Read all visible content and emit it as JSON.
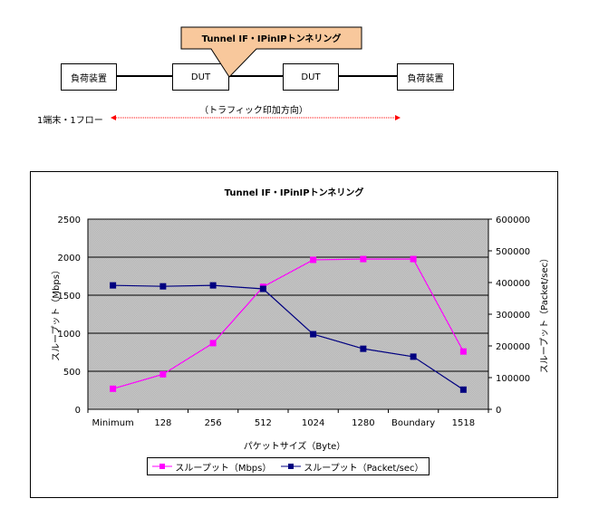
{
  "diagram": {
    "callout_label": "Tunnel IF・IPinIPトンネリング",
    "callout_color": "#f8c89c",
    "nodes": [
      {
        "label": "負荷装置"
      },
      {
        "label": "DUT"
      },
      {
        "label": "DUT"
      },
      {
        "label": "負荷装置"
      }
    ],
    "traffic_direction_label": "（トラフィック印加方向）",
    "flow_label": "1端末・1フロー",
    "arrow_color": "#ff0000"
  },
  "chart_data": {
    "type": "line",
    "title": "Tunnel IF・IPinIPトンネリング",
    "xlabel": "パケットサイズ（Byte）",
    "ylabel": "スループット（Mbps）",
    "y2label": "スループット（Packet/sec）",
    "categories": [
      "Minimum",
      "128",
      "256",
      "512",
      "1024",
      "1280",
      "Boundary",
      "1518"
    ],
    "ylim": [
      0,
      2500
    ],
    "y2lim": [
      0,
      600000
    ],
    "yticks": [
      "0",
      "500",
      "1000",
      "1500",
      "2000",
      "2500"
    ],
    "y2ticks": [
      "0",
      "100000",
      "200000",
      "300000",
      "400000",
      "500000",
      "600000"
    ],
    "grid": true,
    "legend_position": "bottom",
    "series": [
      {
        "name": "スループット（Mbps）",
        "axis": "left",
        "color": "#ff00ff",
        "values": [
          270,
          460,
          870,
          1610,
          1965,
          1975,
          1975,
          760
        ]
      },
      {
        "name": "スループット（Packet/sec）",
        "axis": "right",
        "color": "#000080",
        "values": [
          391000,
          388000,
          391000,
          380000,
          237000,
          191000,
          166000,
          62000
        ]
      }
    ]
  }
}
